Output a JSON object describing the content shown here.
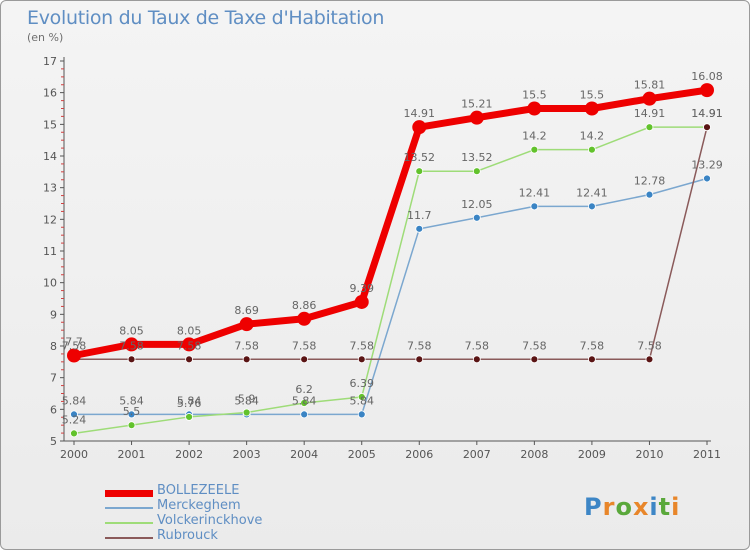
{
  "title": "Evolution du Taux de Taxe d'Habitation",
  "unit": "(en %)",
  "logo": {
    "text": "Proxiti",
    "letters": [
      "P",
      "r",
      "o",
      "x",
      "i",
      "t",
      "i"
    ],
    "colors": [
      "#3d86c6",
      "#e8862a",
      "#5aa83b",
      "#e8862a",
      "#3d86c6",
      "#5aa83b",
      "#e8862a"
    ]
  },
  "chart_data": {
    "type": "line",
    "title": "Evolution du Taux de Taxe d'Habitation",
    "ylabel": "(en %)",
    "x": [
      "2000",
      "2001",
      "2002",
      "2003",
      "2004",
      "2005",
      "2006",
      "2007",
      "2008",
      "2009",
      "2010",
      "2011"
    ],
    "ylim": [
      5,
      17
    ],
    "yticks": [
      5,
      6,
      7,
      8,
      9,
      10,
      11,
      12,
      13,
      14,
      15,
      16,
      17
    ],
    "grid": false,
    "legend_position": "bottom-left",
    "series": [
      {
        "name": "BOLLEZEELE",
        "color": "#ee0000",
        "values": [
          7.7,
          8.05,
          8.05,
          8.69,
          8.86,
          9.39,
          14.91,
          15.21,
          15.5,
          15.5,
          15.81,
          16.08
        ],
        "labels": [
          "7.7",
          "8.05",
          "8.05",
          "8.69",
          "8.86",
          "9.39",
          "14.91",
          "15.21",
          "15.5",
          "15.5",
          "15.81",
          "16.08"
        ],
        "line_width": 7,
        "dot_color": "#ee0000",
        "dot_radius": 7
      },
      {
        "name": "Merckeghem",
        "color": "#7ba7cf",
        "values": [
          5.84,
          5.84,
          5.84,
          5.84,
          5.84,
          5.84,
          11.7,
          12.05,
          12.41,
          12.41,
          12.78,
          13.29
        ],
        "labels": [
          "5.84",
          "5.84",
          "5.84",
          "5.84",
          "5.84",
          "5.84",
          "11.7",
          "12.05",
          "12.41",
          "12.41",
          "12.78",
          "13.29"
        ],
        "line_width": 1.5,
        "dot_color": "#3a84c4",
        "dot_radius": 3.5
      },
      {
        "name": "Volckerinckhove",
        "color": "#9edc78",
        "values": [
          5.24,
          5.5,
          5.76,
          5.9,
          6.2,
          6.39,
          13.52,
          13.52,
          14.2,
          14.2,
          14.91,
          14.91
        ],
        "labels": [
          "5.24",
          "5.5",
          "5.76",
          "5.9",
          "6.2",
          "6.39",
          "13.52",
          "13.52",
          "14.2",
          "14.2",
          "14.91",
          "14.91"
        ],
        "line_width": 1.5,
        "dot_color": "#62c22c",
        "dot_radius": 3.5
      },
      {
        "name": "Rubrouck",
        "color": "#8a5a5a",
        "values": [
          7.58,
          7.58,
          7.58,
          7.58,
          7.58,
          7.58,
          7.58,
          7.58,
          7.58,
          7.58,
          7.58,
          14.91
        ],
        "labels": [
          "7.58",
          "7.58",
          "7.58",
          "7.58",
          "7.58",
          "7.58",
          "7.58",
          "7.58",
          "7.58",
          "7.58",
          "7.58",
          "14.91"
        ],
        "line_width": 1.5,
        "dot_color": "#5a1414",
        "dot_radius": 3.5
      }
    ]
  },
  "legend": [
    {
      "name": "BOLLEZEELE",
      "color": "#ee0000",
      "width": 7
    },
    {
      "name": "Merckeghem",
      "color": "#7ba7cf",
      "width": 2
    },
    {
      "name": "Volckerinckhove",
      "color": "#9edc78",
      "width": 2
    },
    {
      "name": "Rubrouck",
      "color": "#8a5a5a",
      "width": 2
    }
  ]
}
